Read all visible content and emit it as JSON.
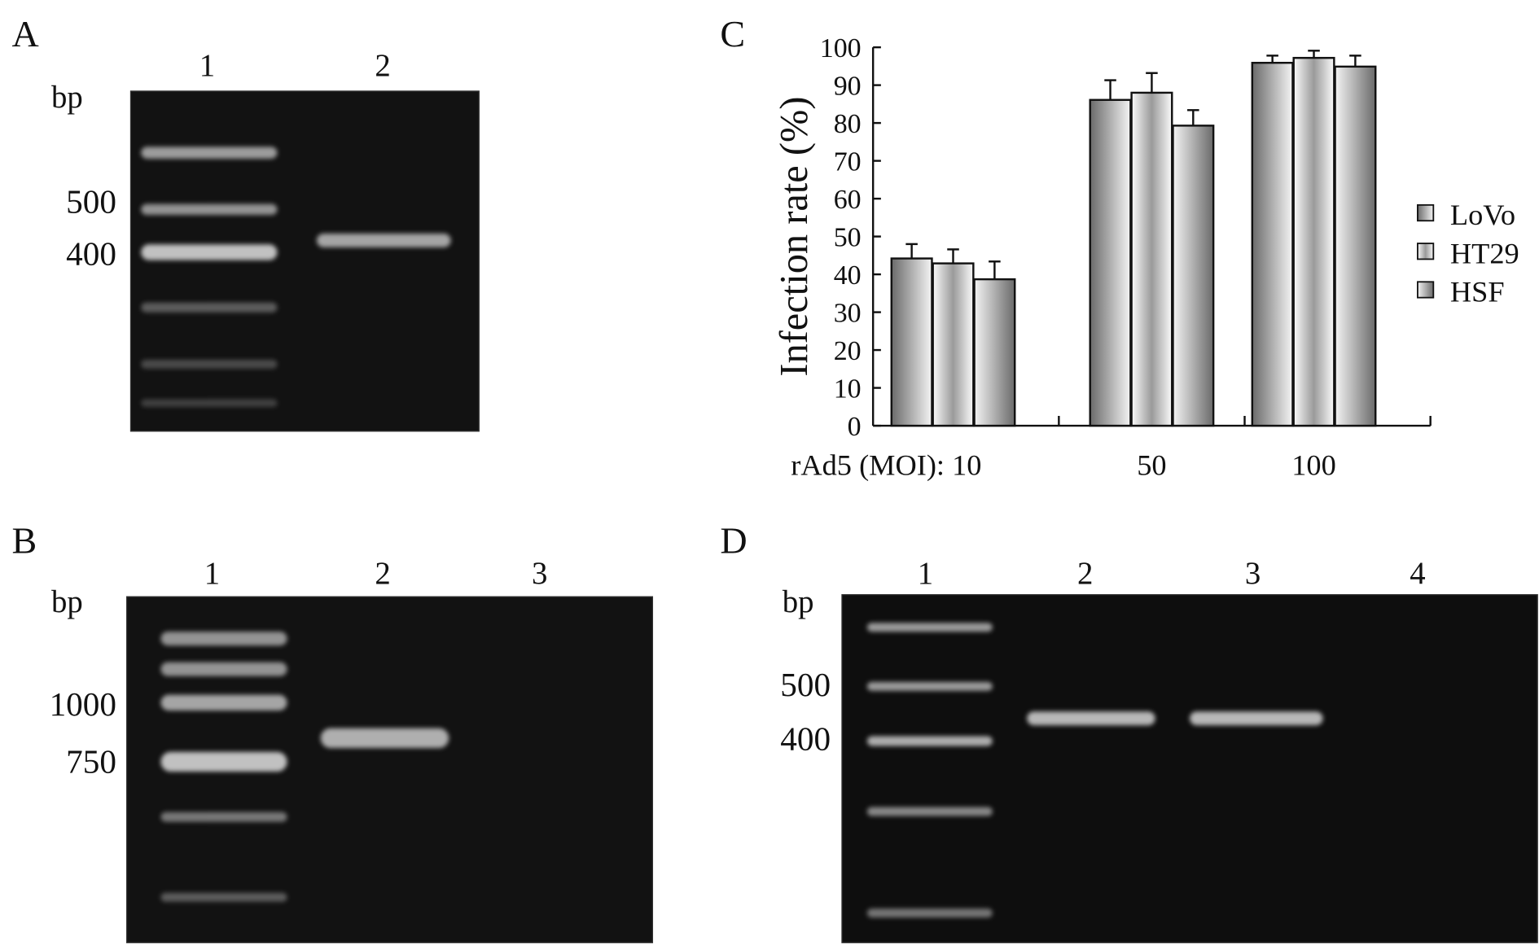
{
  "panels": {
    "A": {
      "label": "A",
      "lanes": [
        "1",
        "2"
      ],
      "unit": "bp",
      "markers": [
        "500",
        "400"
      ]
    },
    "B": {
      "label": "B",
      "lanes": [
        "1",
        "2",
        "3"
      ],
      "unit": "bp",
      "markers": [
        "1000",
        "750"
      ]
    },
    "C": {
      "label": "C"
    },
    "D": {
      "label": "D",
      "lanes": [
        "1",
        "2",
        "3",
        "4"
      ],
      "unit": "bp",
      "markers": [
        "500",
        "400"
      ]
    }
  },
  "chart_data": {
    "type": "bar",
    "title": "",
    "ylabel": "Infection rate (%)",
    "xlabel_prefix": "rAd5 (MOI): ",
    "categories": [
      "10",
      "50",
      "100"
    ],
    "ylim": [
      0,
      100
    ],
    "yticks": [
      "0",
      "10",
      "20",
      "30",
      "40",
      "50",
      "60",
      "70",
      "80",
      "90",
      "100"
    ],
    "grid": false,
    "legend_position": "right",
    "error_bars": true,
    "series": [
      {
        "name": "LoVo",
        "values": [
          44.2,
          86.1,
          95.9
        ],
        "errors": [
          3.8,
          5.2,
          1.9
        ]
      },
      {
        "name": "HT29",
        "values": [
          42.9,
          88.0,
          97.2
        ],
        "errors": [
          3.7,
          5.2,
          1.9
        ]
      },
      {
        "name": "HSF",
        "values": [
          38.7,
          79.3,
          94.9
        ],
        "errors": [
          4.7,
          4.1,
          2.9
        ]
      }
    ]
  }
}
